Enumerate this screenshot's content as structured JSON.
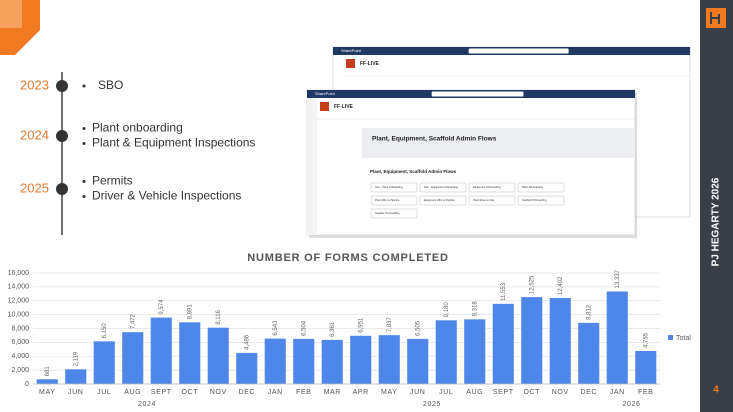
{
  "timeline": {
    "items": [
      {
        "year": "2023",
        "bullets": [
          "SBO"
        ]
      },
      {
        "year": "2024",
        "bullets": [
          "Plant onboarding",
          "Plant & Equipment Inspections"
        ]
      },
      {
        "year": "2025",
        "bullets": [
          "Permits",
          "Driver & Vehicle Inspections"
        ]
      }
    ]
  },
  "screenshot": {
    "back": {
      "app": "SharePoint",
      "site": "FF-LIVE"
    },
    "front": {
      "app": "SharePoint",
      "site": "FF-LIVE",
      "page_title": "Plant, Equipment, Scaffold Admin Flows",
      "section": "Plant, Equipment, Scaffold Admin Flows",
      "buttons": [
        "Gen - Plant Onboarding",
        "Gen - Equipment Onboarding",
        "Equipment Off-boarding",
        "Plant Off-boarding",
        "Plant Affix to Pipeline",
        "Equipment Affix to Pipeline",
        "Plant Move to Site",
        "Scaffold Off-boarding",
        "Supplier On-boarding"
      ]
    }
  },
  "sidebar": {
    "brand": "PJ HEGARTY 2026",
    "page_number": "4"
  },
  "chart_data": {
    "type": "bar",
    "title": "NUMBER OF FORMS COMPLETED",
    "categories": [
      "MAY",
      "JUN",
      "JUL",
      "AUG",
      "SEPT",
      "OCT",
      "NOV",
      "DEC",
      "JAN",
      "FEB",
      "MAR",
      "APR",
      "MAY",
      "JUN",
      "JUL",
      "AUG",
      "SEPT",
      "OCT",
      "NOV",
      "DEC",
      "JAN",
      "FEB"
    ],
    "category_years": [
      "2024",
      "2024",
      "2024",
      "2024",
      "2024",
      "2024",
      "2024",
      "2024",
      "2025",
      "2025",
      "2025",
      "2025",
      "2025",
      "2025",
      "2025",
      "2025",
      "2025",
      "2025",
      "2025",
      "2025",
      "2026",
      "2026"
    ],
    "series": [
      {
        "name": "Total",
        "color": "#4f86ea",
        "values": [
          681,
          2119,
          6150,
          7472,
          9574,
          8891,
          8116,
          4486,
          6543,
          6504,
          6361,
          6951,
          7037,
          6505,
          9180,
          9318,
          11553,
          12525,
          12402,
          8812,
          13337,
          4755
        ],
        "value_labels": [
          "681",
          "2,119",
          "6,150",
          "7,472",
          "9,574",
          "8,891",
          "8,116",
          "4,486",
          "6,543",
          "6,504",
          "6,361",
          "6,951",
          "7,037",
          "6,505",
          "9,180",
          "9,318",
          "11,553",
          "12,525",
          "12,402",
          "8,812",
          "13,337",
          "4,755"
        ]
      }
    ],
    "ylim": [
      0,
      16000
    ],
    "yticks": [
      0,
      {
        "value": 2000,
        "label": "2,000"
      },
      {
        "value": 4000,
        "label": "4,000"
      },
      {
        "value": 6000,
        "label": "6,000"
      },
      {
        "value": 8000,
        "label": "8,000"
      },
      {
        "value": 10000,
        "label": "10,000"
      },
      {
        "value": 12000,
        "label": "12,000"
      },
      {
        "value": 14000,
        "label": "14,000"
      },
      {
        "value": 16000,
        "label": "16,000"
      }
    ],
    "grid": true,
    "legend": "right"
  }
}
